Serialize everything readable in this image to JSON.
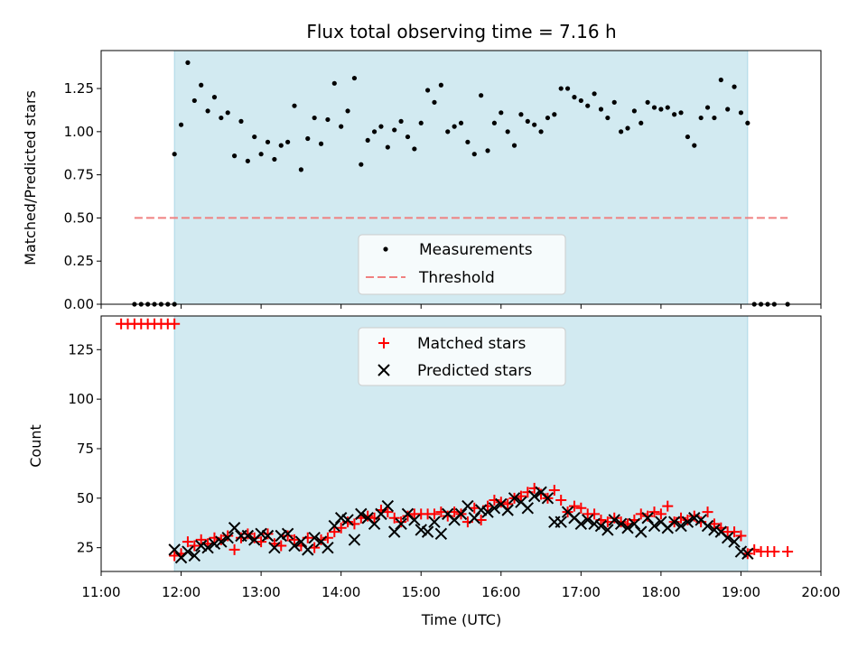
{
  "chart_data": [
    {
      "type": "scatter",
      "title": "Flux total observing time = 7.16 h",
      "ylabel": "Matched/Predicted stars",
      "xlabel": "",
      "xlim": [
        "11:00",
        "20:00"
      ],
      "ylim": [
        0,
        1.47
      ],
      "y_ticks": [
        "0.00",
        "0.25",
        "0.50",
        "0.75",
        "1.00",
        "1.25"
      ],
      "shaded_region": {
        "start": "11:55",
        "end": "19:05",
        "color": "#add8e6"
      },
      "legend": {
        "position": "lower center"
      },
      "threshold": {
        "name": "Threshold",
        "value": 0.5,
        "x_range": [
          "11:25",
          "19:35"
        ],
        "color": "#f08080"
      },
      "series": [
        {
          "name": "Measurements",
          "color": "#000000",
          "marker": "dot",
          "x": [
            "11:25",
            "11:30",
            "11:35",
            "11:40",
            "11:45",
            "11:50",
            "11:55",
            "11:55",
            "12:00",
            "12:05",
            "12:10",
            "12:15",
            "12:20",
            "12:25",
            "12:30",
            "12:35",
            "12:40",
            "12:45",
            "12:50",
            "12:55",
            "13:00",
            "13:05",
            "13:10",
            "13:15",
            "13:20",
            "13:25",
            "13:30",
            "13:35",
            "13:40",
            "13:45",
            "13:50",
            "13:55",
            "14:00",
            "14:05",
            "14:10",
            "14:15",
            "14:20",
            "14:25",
            "14:30",
            "14:35",
            "14:40",
            "14:45",
            "14:50",
            "14:55",
            "15:00",
            "15:05",
            "15:10",
            "15:15",
            "15:20",
            "15:25",
            "15:30",
            "15:35",
            "15:40",
            "15:45",
            "15:50",
            "15:55",
            "16:00",
            "16:05",
            "16:10",
            "16:15",
            "16:20",
            "16:25",
            "16:30",
            "16:35",
            "16:40",
            "16:45",
            "16:50",
            "16:55",
            "17:00",
            "17:05",
            "17:10",
            "17:15",
            "17:20",
            "17:25",
            "17:30",
            "17:35",
            "17:40",
            "17:45",
            "17:50",
            "17:55",
            "18:00",
            "18:05",
            "18:10",
            "18:15",
            "18:20",
            "18:25",
            "18:30",
            "18:35",
            "18:40",
            "18:45",
            "18:50",
            "18:55",
            "19:00",
            "19:05",
            "19:10",
            "19:15",
            "19:20",
            "19:25",
            "19:35"
          ],
          "y": [
            0,
            0,
            0,
            0,
            0,
            0,
            0,
            0.87,
            1.04,
            1.4,
            1.18,
            1.27,
            1.12,
            1.2,
            1.08,
            1.11,
            0.86,
            1.06,
            0.83,
            0.97,
            0.87,
            0.94,
            0.84,
            0.92,
            0.94,
            1.15,
            0.78,
            0.96,
            1.08,
            0.93,
            1.07,
            1.28,
            1.03,
            1.12,
            1.31,
            0.81,
            0.95,
            1.0,
            1.03,
            0.91,
            1.01,
            1.06,
            0.97,
            0.9,
            1.05,
            1.24,
            1.17,
            1.27,
            1.0,
            1.03,
            1.05,
            0.94,
            0.87,
            1.21,
            0.89,
            1.05,
            1.11,
            1.0,
            0.92,
            1.1,
            1.06,
            1.04,
            1.0,
            1.08,
            1.1,
            1.25,
            1.25,
            1.2,
            1.18,
            1.15,
            1.22,
            1.13,
            1.08,
            1.17,
            1.0,
            1.02,
            1.12,
            1.05,
            1.17,
            1.14,
            1.13,
            1.14,
            1.1,
            1.11,
            0.97,
            0.92,
            1.08,
            1.14,
            1.08,
            1.3,
            1.13,
            1.26,
            1.11,
            1.05,
            0,
            0,
            0,
            0,
            0
          ]
        }
      ]
    },
    {
      "type": "scatter",
      "title": "",
      "xlabel": "Time (UTC)",
      "ylabel": "Count",
      "xlim": [
        "11:00",
        "20:00"
      ],
      "ylim": [
        13,
        142
      ],
      "x_ticks": [
        "11:00",
        "12:00",
        "13:00",
        "14:00",
        "15:00",
        "16:00",
        "17:00",
        "18:00",
        "19:00",
        "20:00"
      ],
      "y_ticks": [
        "25",
        "50",
        "75",
        "100",
        "125"
      ],
      "shaded_region": {
        "start": "11:55",
        "end": "19:05",
        "color": "#add8e6"
      },
      "legend": {
        "position": "upper center"
      },
      "series": [
        {
          "name": "Matched stars",
          "color": "#ff0000",
          "marker": "plus",
          "x": [
            "11:15",
            "11:20",
            "11:25",
            "11:30",
            "11:35",
            "11:40",
            "11:45",
            "11:50",
            "11:55",
            "11:55",
            "12:00",
            "12:05",
            "12:10",
            "12:15",
            "12:20",
            "12:25",
            "12:30",
            "12:35",
            "12:40",
            "12:45",
            "12:50",
            "12:55",
            "13:00",
            "13:05",
            "13:10",
            "13:15",
            "13:20",
            "13:25",
            "13:30",
            "13:35",
            "13:40",
            "13:45",
            "13:50",
            "13:55",
            "14:00",
            "14:05",
            "14:10",
            "14:15",
            "14:20",
            "14:25",
            "14:30",
            "14:35",
            "14:40",
            "14:45",
            "14:50",
            "14:55",
            "15:00",
            "15:05",
            "15:10",
            "15:15",
            "15:20",
            "15:25",
            "15:30",
            "15:35",
            "15:40",
            "15:45",
            "15:50",
            "15:55",
            "16:00",
            "16:05",
            "16:10",
            "16:15",
            "16:20",
            "16:25",
            "16:30",
            "16:35",
            "16:40",
            "16:45",
            "16:50",
            "16:55",
            "17:00",
            "17:05",
            "17:10",
            "17:15",
            "17:20",
            "17:25",
            "17:30",
            "17:35",
            "17:40",
            "17:45",
            "17:50",
            "17:55",
            "18:00",
            "18:05",
            "18:10",
            "18:15",
            "18:20",
            "18:25",
            "18:30",
            "18:35",
            "18:40",
            "18:45",
            "18:50",
            "18:55",
            "19:00",
            "19:05",
            "19:10",
            "19:15",
            "19:20",
            "19:25",
            "19:35"
          ],
          "y": [
            138,
            138,
            138,
            138,
            138,
            138,
            138,
            138,
            138,
            21,
            22,
            28,
            26,
            29,
            27,
            30,
            29,
            31,
            24,
            30,
            32,
            30,
            28,
            32,
            27,
            26,
            31,
            29,
            26,
            30,
            25,
            29,
            30,
            33,
            35,
            38,
            37,
            40,
            41,
            40,
            44,
            43,
            40,
            38,
            41,
            42,
            42,
            42,
            42,
            43,
            41,
            43,
            42,
            38,
            45,
            39,
            46,
            49,
            48,
            47,
            50,
            51,
            53,
            55,
            52,
            50,
            54,
            49,
            43,
            46,
            45,
            42,
            42,
            39,
            38,
            40,
            38,
            37,
            39,
            42,
            41,
            43,
            42,
            46,
            38,
            40,
            39,
            41,
            38,
            43,
            37,
            35,
            33,
            33,
            31,
            22,
            24,
            23,
            23,
            23,
            23
          ]
        },
        {
          "name": "Predicted stars",
          "color": "#000000",
          "marker": "x",
          "x": [
            "11:55",
            "12:00",
            "12:05",
            "12:10",
            "12:15",
            "12:20",
            "12:25",
            "12:30",
            "12:35",
            "12:40",
            "12:45",
            "12:50",
            "12:55",
            "13:00",
            "13:05",
            "13:10",
            "13:15",
            "13:20",
            "13:25",
            "13:30",
            "13:35",
            "13:40",
            "13:45",
            "13:50",
            "13:55",
            "14:00",
            "14:05",
            "14:10",
            "14:15",
            "14:20",
            "14:25",
            "14:30",
            "14:35",
            "14:40",
            "14:45",
            "14:50",
            "14:55",
            "15:00",
            "15:05",
            "15:10",
            "15:15",
            "15:20",
            "15:25",
            "15:30",
            "15:35",
            "15:40",
            "15:45",
            "15:50",
            "15:55",
            "16:00",
            "16:05",
            "16:10",
            "16:15",
            "16:20",
            "16:25",
            "16:30",
            "16:35",
            "16:40",
            "16:45",
            "16:50",
            "16:55",
            "17:00",
            "17:05",
            "17:10",
            "17:15",
            "17:20",
            "17:25",
            "17:30",
            "17:35",
            "17:40",
            "17:45",
            "17:50",
            "17:55",
            "18:00",
            "18:05",
            "18:10",
            "18:15",
            "18:20",
            "18:25",
            "18:30",
            "18:35",
            "18:40",
            "18:45",
            "18:50",
            "18:55",
            "19:00",
            "19:05"
          ],
          "y": [
            24,
            20,
            23,
            21,
            26,
            25,
            27,
            28,
            30,
            35,
            31,
            31,
            29,
            32,
            31,
            25,
            31,
            32,
            26,
            28,
            24,
            30,
            28,
            25,
            36,
            40,
            39,
            29,
            42,
            40,
            37,
            42,
            46,
            33,
            37,
            42,
            39,
            34,
            33,
            38,
            32,
            42,
            39,
            42,
            46,
            40,
            44,
            43,
            45,
            47,
            44,
            50,
            48,
            45,
            51,
            53,
            50,
            38,
            38,
            43,
            40,
            37,
            39,
            37,
            36,
            34,
            39,
            37,
            35,
            37,
            33,
            40,
            36,
            38,
            35,
            38,
            36,
            38,
            40,
            39,
            36,
            34,
            33,
            30,
            28,
            23,
            22
          ]
        }
      ]
    }
  ]
}
